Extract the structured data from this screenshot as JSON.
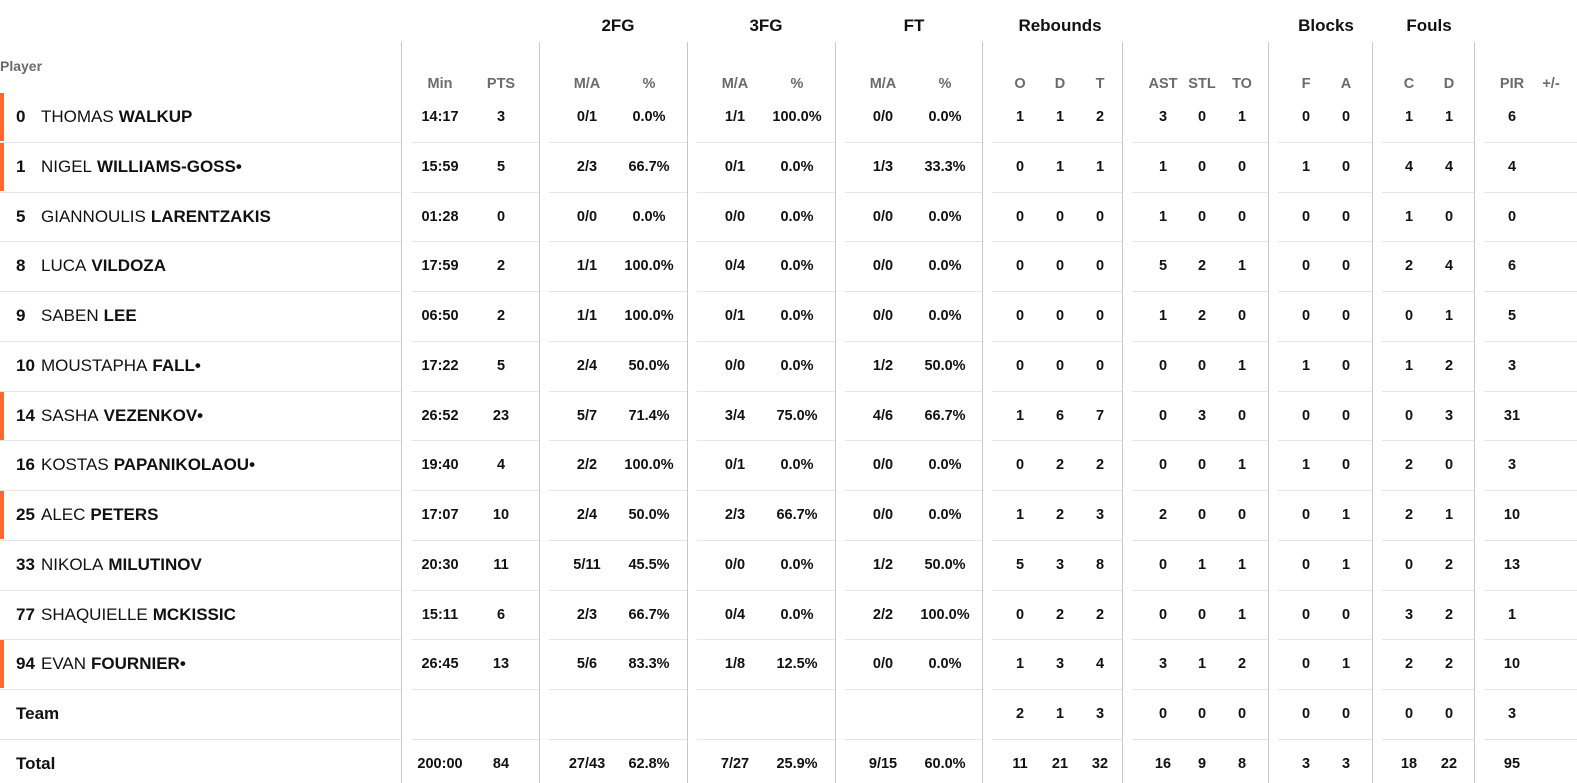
{
  "groups": [
    {
      "label": "2FG"
    },
    {
      "label": "3FG"
    },
    {
      "label": "FT"
    },
    {
      "label": "Rebounds"
    },
    {
      "label": "Blocks"
    },
    {
      "label": "Fouls"
    }
  ],
  "player_header": "Player",
  "columns": [
    {
      "key": "min",
      "label": "Min"
    },
    {
      "key": "pts",
      "label": "PTS"
    },
    {
      "key": "fg2",
      "label": "M/A"
    },
    {
      "key": "fg2p",
      "label": "%"
    },
    {
      "key": "fg3",
      "label": "M/A"
    },
    {
      "key": "fg3p",
      "label": "%"
    },
    {
      "key": "ft",
      "label": "M/A"
    },
    {
      "key": "ftp",
      "label": "%"
    },
    {
      "key": "o",
      "label": "O"
    },
    {
      "key": "d",
      "label": "D"
    },
    {
      "key": "t",
      "label": "T"
    },
    {
      "key": "ast",
      "label": "AST"
    },
    {
      "key": "stl",
      "label": "STL"
    },
    {
      "key": "to",
      "label": "TO"
    },
    {
      "key": "bf",
      "label": "F"
    },
    {
      "key": "ba",
      "label": "A"
    },
    {
      "key": "fc",
      "label": "C"
    },
    {
      "key": "fd",
      "label": "D"
    },
    {
      "key": "pir",
      "label": "PIR"
    },
    {
      "key": "pm",
      "label": "+/-"
    }
  ],
  "players": [
    {
      "number": "0",
      "first": "THOMAS",
      "last": "WALKUP",
      "starter": true,
      "stats": [
        "14:17",
        "3",
        "0/1",
        "0.0%",
        "1/1",
        "100.0%",
        "0/0",
        "0.0%",
        "1",
        "1",
        "2",
        "3",
        "0",
        "1",
        "0",
        "0",
        "1",
        "1",
        "6",
        ""
      ]
    },
    {
      "number": "1",
      "first": "NIGEL",
      "last": "WILLIAMS-GOSS•",
      "starter": true,
      "stats": [
        "15:59",
        "5",
        "2/3",
        "66.7%",
        "0/1",
        "0.0%",
        "1/3",
        "33.3%",
        "0",
        "1",
        "1",
        "1",
        "0",
        "0",
        "1",
        "0",
        "4",
        "4",
        "4",
        ""
      ]
    },
    {
      "number": "5",
      "first": "GIANNOULIS",
      "last": "LARENTZAKIS",
      "starter": false,
      "stats": [
        "01:28",
        "0",
        "0/0",
        "0.0%",
        "0/0",
        "0.0%",
        "0/0",
        "0.0%",
        "0",
        "0",
        "0",
        "1",
        "0",
        "0",
        "0",
        "0",
        "1",
        "0",
        "0",
        ""
      ]
    },
    {
      "number": "8",
      "first": "LUCA",
      "last": "VILDOZA",
      "starter": false,
      "stats": [
        "17:59",
        "2",
        "1/1",
        "100.0%",
        "0/4",
        "0.0%",
        "0/0",
        "0.0%",
        "0",
        "0",
        "0",
        "5",
        "2",
        "1",
        "0",
        "0",
        "2",
        "4",
        "6",
        ""
      ]
    },
    {
      "number": "9",
      "first": "SABEN",
      "last": "LEE",
      "starter": false,
      "stats": [
        "06:50",
        "2",
        "1/1",
        "100.0%",
        "0/1",
        "0.0%",
        "0/0",
        "0.0%",
        "0",
        "0",
        "0",
        "1",
        "2",
        "0",
        "0",
        "0",
        "0",
        "1",
        "5",
        ""
      ]
    },
    {
      "number": "10",
      "first": "MOUSTAPHA",
      "last": "FALL•",
      "starter": false,
      "stats": [
        "17:22",
        "5",
        "2/4",
        "50.0%",
        "0/0",
        "0.0%",
        "1/2",
        "50.0%",
        "0",
        "0",
        "0",
        "0",
        "0",
        "1",
        "1",
        "0",
        "1",
        "2",
        "3",
        ""
      ]
    },
    {
      "number": "14",
      "first": "SASHA",
      "last": "VEZENKOV•",
      "starter": true,
      "stats": [
        "26:52",
        "23",
        "5/7",
        "71.4%",
        "3/4",
        "75.0%",
        "4/6",
        "66.7%",
        "1",
        "6",
        "7",
        "0",
        "3",
        "0",
        "0",
        "0",
        "0",
        "3",
        "31",
        ""
      ]
    },
    {
      "number": "16",
      "first": "KOSTAS",
      "last": "PAPANIKOLAOU•",
      "starter": false,
      "stats": [
        "19:40",
        "4",
        "2/2",
        "100.0%",
        "0/1",
        "0.0%",
        "0/0",
        "0.0%",
        "0",
        "2",
        "2",
        "0",
        "0",
        "1",
        "1",
        "0",
        "2",
        "0",
        "3",
        ""
      ]
    },
    {
      "number": "25",
      "first": "ALEC",
      "last": "PETERS",
      "starter": true,
      "stats": [
        "17:07",
        "10",
        "2/4",
        "50.0%",
        "2/3",
        "66.7%",
        "0/0",
        "0.0%",
        "1",
        "2",
        "3",
        "2",
        "0",
        "0",
        "0",
        "1",
        "2",
        "1",
        "10",
        ""
      ]
    },
    {
      "number": "33",
      "first": "NIKOLA",
      "last": "MILUTINOV",
      "starter": false,
      "stats": [
        "20:30",
        "11",
        "5/11",
        "45.5%",
        "0/0",
        "0.0%",
        "1/2",
        "50.0%",
        "5",
        "3",
        "8",
        "0",
        "1",
        "1",
        "0",
        "1",
        "0",
        "2",
        "13",
        ""
      ]
    },
    {
      "number": "77",
      "first": "SHAQUIELLE",
      "last": "MCKISSIC",
      "starter": false,
      "stats": [
        "15:11",
        "6",
        "2/3",
        "66.7%",
        "0/4",
        "0.0%",
        "2/2",
        "100.0%",
        "0",
        "2",
        "2",
        "0",
        "0",
        "1",
        "0",
        "0",
        "3",
        "2",
        "1",
        ""
      ]
    },
    {
      "number": "94",
      "first": "EVAN",
      "last": "FOURNIER•",
      "starter": true,
      "stats": [
        "26:45",
        "13",
        "5/6",
        "83.3%",
        "1/8",
        "12.5%",
        "0/0",
        "0.0%",
        "1",
        "3",
        "4",
        "3",
        "1",
        "2",
        "0",
        "1",
        "2",
        "2",
        "10",
        ""
      ]
    }
  ],
  "team_row": {
    "label": "Team",
    "stats": [
      "",
      "",
      "",
      "",
      "",
      "",
      "",
      "",
      "2",
      "1",
      "3",
      "0",
      "0",
      "0",
      "0",
      "0",
      "0",
      "0",
      "3",
      ""
    ]
  },
  "total_row": {
    "label": "Total",
    "stats": [
      "200:00",
      "84",
      "27/43",
      "62.8%",
      "7/27",
      "25.9%",
      "9/15",
      "60.0%",
      "11",
      "21",
      "32",
      "16",
      "9",
      "8",
      "3",
      "3",
      "18",
      "22",
      "95",
      ""
    ]
  },
  "colors": {
    "starter_marker": "#ff6a2c",
    "header_text": "#6b6b6b",
    "divider": "#c9c9c9"
  }
}
